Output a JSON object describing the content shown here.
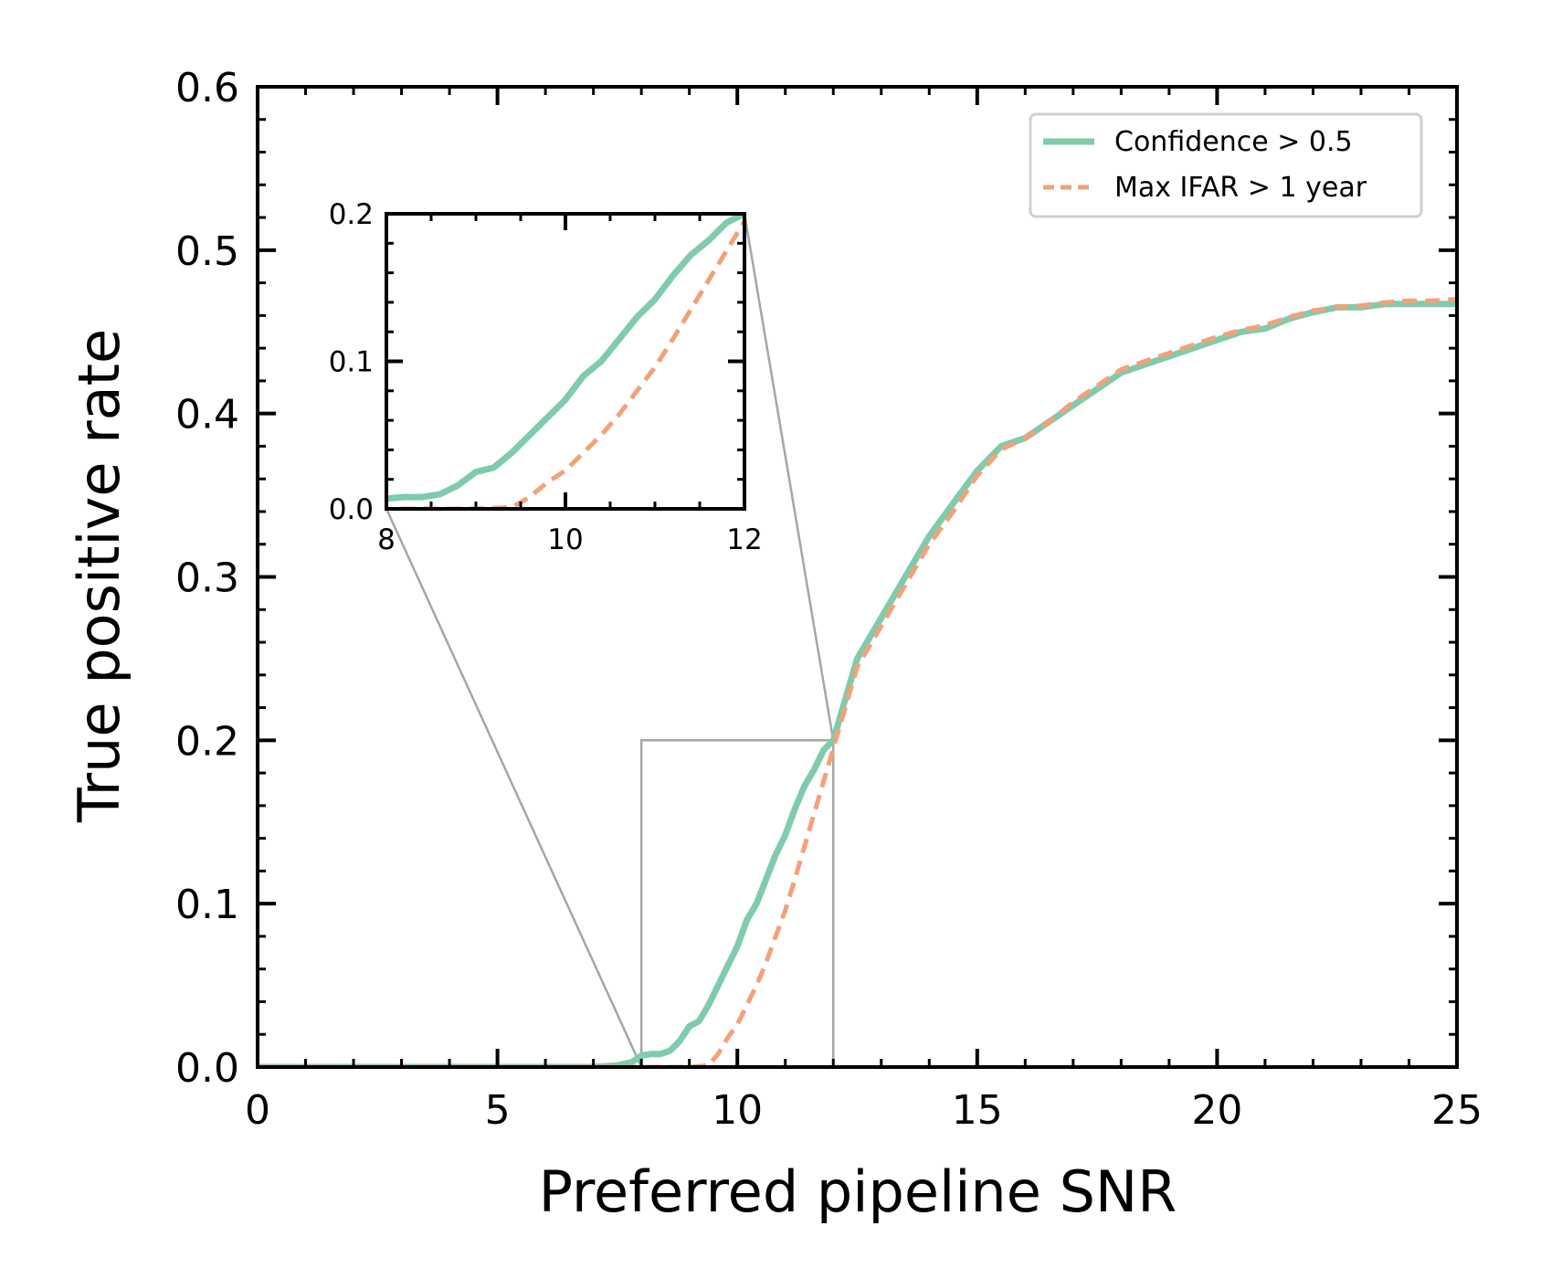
{
  "chart_data": {
    "type": "line",
    "title": "",
    "xlabel": "Preferred pipeline SNR",
    "ylabel": "True positive rate",
    "xlim": [
      0,
      25
    ],
    "ylim": [
      0,
      0.6
    ],
    "xticks": [
      0,
      5,
      10,
      15,
      20,
      25
    ],
    "xtick_labels": [
      "0",
      "5",
      "10",
      "15",
      "20",
      "25"
    ],
    "yticks": [
      0.0,
      0.1,
      0.2,
      0.3,
      0.4,
      0.5,
      0.6
    ],
    "ytick_labels": [
      "0.0",
      "0.1",
      "0.2",
      "0.3",
      "0.4",
      "0.5",
      "0.6"
    ],
    "grid": false,
    "legend_position": "top-right",
    "series": [
      {
        "name": "Confidence > 0.5",
        "color": "#7fcbab",
        "style": "solid",
        "x": [
          0,
          7.0,
          7.5,
          7.8,
          8.0,
          8.2,
          8.4,
          8.6,
          8.8,
          9.0,
          9.2,
          9.4,
          9.6,
          9.8,
          10.0,
          10.2,
          10.4,
          10.6,
          10.8,
          11.0,
          11.2,
          11.4,
          11.6,
          11.8,
          12.0,
          12.5,
          13.0,
          13.5,
          14.0,
          14.5,
          15.0,
          15.5,
          16.0,
          16.5,
          17.0,
          17.5,
          18.0,
          18.5,
          19.0,
          19.5,
          20.0,
          20.5,
          21.0,
          21.5,
          22.0,
          22.5,
          23.0,
          23.5,
          24.0,
          24.5,
          25.0
        ],
        "y": [
          0.0,
          0.0,
          0.001,
          0.003,
          0.007,
          0.008,
          0.008,
          0.01,
          0.016,
          0.025,
          0.028,
          0.038,
          0.05,
          0.062,
          0.074,
          0.09,
          0.1,
          0.115,
          0.13,
          0.142,
          0.158,
          0.172,
          0.182,
          0.194,
          0.2,
          0.25,
          0.275,
          0.3,
          0.325,
          0.345,
          0.365,
          0.38,
          0.385,
          0.395,
          0.405,
          0.415,
          0.425,
          0.43,
          0.435,
          0.44,
          0.445,
          0.45,
          0.452,
          0.458,
          0.462,
          0.465,
          0.465,
          0.467,
          0.467,
          0.467,
          0.467
        ]
      },
      {
        "name": "Max IFAR > 1 year",
        "color": "#f4a07a",
        "style": "dashed",
        "x": [
          0,
          9.0,
          9.4,
          9.6,
          9.8,
          10.0,
          10.2,
          10.4,
          10.6,
          10.8,
          11.0,
          11.2,
          11.4,
          11.6,
          11.8,
          12.0,
          12.5,
          13.0,
          13.5,
          14.0,
          14.5,
          15.0,
          15.5,
          16.0,
          16.5,
          17.0,
          17.5,
          18.0,
          18.5,
          19.0,
          19.5,
          20.0,
          20.5,
          21.0,
          21.5,
          22.0,
          22.5,
          23.0,
          23.5,
          24.0,
          24.5,
          25.0
        ],
        "y": [
          0.0,
          0.0,
          0.001,
          0.008,
          0.018,
          0.026,
          0.038,
          0.05,
          0.064,
          0.08,
          0.096,
          0.115,
          0.135,
          0.155,
          0.175,
          0.195,
          0.245,
          0.27,
          0.295,
          0.32,
          0.34,
          0.362,
          0.378,
          0.385,
          0.395,
          0.407,
          0.417,
          0.427,
          0.432,
          0.437,
          0.442,
          0.447,
          0.451,
          0.454,
          0.459,
          0.463,
          0.465,
          0.466,
          0.468,
          0.469,
          0.469,
          0.47
        ]
      }
    ],
    "inset": {
      "xlim": [
        8,
        12
      ],
      "ylim": [
        0,
        0.2
      ],
      "xticks": [
        8,
        10,
        12
      ],
      "xtick_labels": [
        "8",
        "10",
        "12"
      ],
      "yticks": [
        0.0,
        0.1,
        0.2
      ],
      "ytick_labels": [
        "0.0",
        "0.1",
        "0.2"
      ],
      "zoom_region": {
        "x": [
          8,
          12
        ],
        "y": [
          0,
          0.2
        ]
      }
    }
  }
}
